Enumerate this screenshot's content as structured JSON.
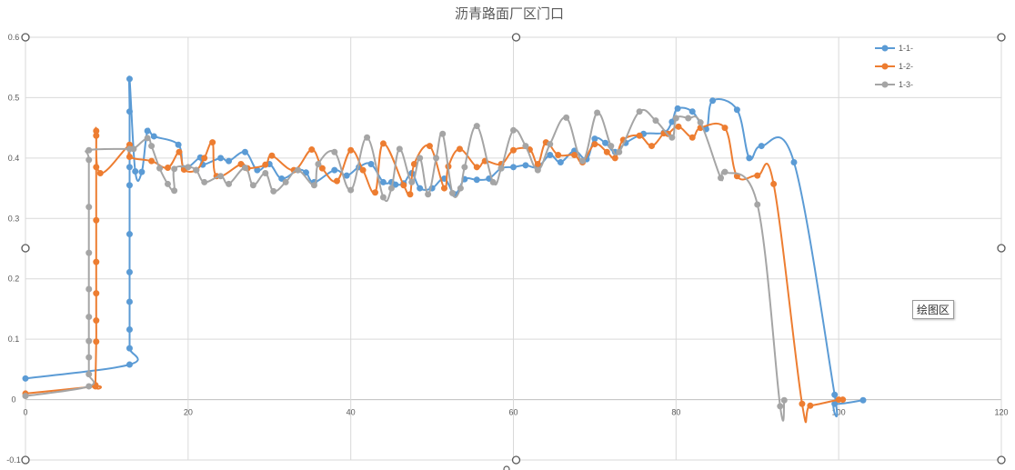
{
  "chart_data": {
    "type": "line",
    "title": "沥青路面厂区门口",
    "xlabel": "",
    "ylabel": "",
    "xlim": [
      0,
      120
    ],
    "ylim": [
      -0.1,
      0.6
    ],
    "x_ticks": [
      0,
      20,
      40,
      60,
      80,
      100,
      120
    ],
    "y_ticks": [
      -0.1,
      0,
      0.1,
      0.2,
      0.3,
      0.4,
      0.5,
      0.6
    ],
    "y_tick_labels": [
      "-0.1",
      "0",
      "0.1",
      "0.2",
      "0.3",
      "0.4",
      "0.5",
      "0.6"
    ],
    "grid": true,
    "legend_position": "top-right",
    "series": [
      {
        "name": "1-1-",
        "color": "#5b9bd5",
        "points": [
          [
            0,
            0.035
          ],
          [
            12.8,
            0.058
          ],
          [
            12.8,
            0.085
          ],
          [
            12.8,
            0.116
          ],
          [
            12.8,
            0.162
          ],
          [
            12.8,
            0.211
          ],
          [
            12.8,
            0.274
          ],
          [
            12.8,
            0.355
          ],
          [
            12.8,
            0.385
          ],
          [
            12.8,
            0.477
          ],
          [
            12.8,
            0.531
          ],
          [
            13.5,
            0.378
          ],
          [
            14.3,
            0.377
          ],
          [
            15,
            0.445
          ],
          [
            15.8,
            0.436
          ],
          [
            18.8,
            0.422
          ],
          [
            19.5,
            0.383
          ],
          [
            21.5,
            0.401
          ],
          [
            21.8,
            0.389
          ],
          [
            24,
            0.4
          ],
          [
            25,
            0.395
          ],
          [
            27,
            0.41
          ],
          [
            28.5,
            0.38
          ],
          [
            30,
            0.39
          ],
          [
            31.5,
            0.366
          ],
          [
            33.5,
            0.38
          ],
          [
            34.5,
            0.376
          ],
          [
            35.5,
            0.36
          ],
          [
            38,
            0.38
          ],
          [
            39.5,
            0.371
          ],
          [
            41,
            0.385
          ],
          [
            42.5,
            0.39
          ],
          [
            44,
            0.36
          ],
          [
            45,
            0.36
          ],
          [
            45.5,
            0.356
          ],
          [
            46.5,
            0.358
          ],
          [
            47.5,
            0.375
          ],
          [
            48.5,
            0.35
          ],
          [
            50,
            0.35
          ],
          [
            51.5,
            0.366
          ],
          [
            52.8,
            0.34
          ],
          [
            54,
            0.365
          ],
          [
            55.5,
            0.364
          ],
          [
            57,
            0.366
          ],
          [
            58.5,
            0.383
          ],
          [
            60,
            0.385
          ],
          [
            61.5,
            0.388
          ],
          [
            63,
            0.385
          ],
          [
            64.5,
            0.405
          ],
          [
            65.8,
            0.393
          ],
          [
            67.5,
            0.412
          ],
          [
            69,
            0.398
          ],
          [
            70,
            0.432
          ],
          [
            71.3,
            0.425
          ],
          [
            72.5,
            0.41
          ],
          [
            73.8,
            0.425
          ],
          [
            76,
            0.44
          ],
          [
            78.5,
            0.442
          ],
          [
            79.5,
            0.46
          ],
          [
            80.2,
            0.482
          ],
          [
            82,
            0.477
          ],
          [
            83.7,
            0.448
          ],
          [
            84.5,
            0.495
          ],
          [
            87.5,
            0.48
          ],
          [
            89,
            0.4
          ],
          [
            90.5,
            0.42
          ],
          [
            94.5,
            0.393
          ],
          [
            99.5,
            0.008
          ],
          [
            99.5,
            -0.007
          ],
          [
            103,
            -0.001
          ]
        ]
      },
      {
        "name": "1-2-",
        "color": "#ed7d31",
        "points": [
          [
            0,
            0.01
          ],
          [
            8.6,
            0.022
          ],
          [
            8.6,
            0.024
          ],
          [
            8.7,
            0.096
          ],
          [
            8.7,
            0.131
          ],
          [
            8.7,
            0.176
          ],
          [
            8.7,
            0.228
          ],
          [
            8.7,
            0.297
          ],
          [
            8.7,
            0.385
          ],
          [
            8.7,
            0.437
          ],
          [
            8.7,
            0.445
          ],
          [
            9.2,
            0.375
          ],
          [
            12.8,
            0.422
          ],
          [
            12.8,
            0.402
          ],
          [
            15.5,
            0.395
          ],
          [
            17.5,
            0.384
          ],
          [
            18.9,
            0.41
          ],
          [
            19.5,
            0.381
          ],
          [
            21,
            0.38
          ],
          [
            22,
            0.4
          ],
          [
            23,
            0.426
          ],
          [
            23.5,
            0.37
          ],
          [
            26.5,
            0.39
          ],
          [
            27.3,
            0.383
          ],
          [
            29.5,
            0.389
          ],
          [
            30.3,
            0.404
          ],
          [
            33,
            0.38
          ],
          [
            35.2,
            0.414
          ],
          [
            36.5,
            0.383
          ],
          [
            38.3,
            0.362
          ],
          [
            40,
            0.413
          ],
          [
            41.5,
            0.38
          ],
          [
            43,
            0.343
          ],
          [
            44,
            0.424
          ],
          [
            46.5,
            0.355
          ],
          [
            47.3,
            0.34
          ],
          [
            47.8,
            0.39
          ],
          [
            49.7,
            0.42
          ],
          [
            51.5,
            0.35
          ],
          [
            52,
            0.386
          ],
          [
            53.4,
            0.415
          ],
          [
            55.5,
            0.385
          ],
          [
            56.5,
            0.395
          ],
          [
            58.5,
            0.39
          ],
          [
            60,
            0.413
          ],
          [
            62,
            0.414
          ],
          [
            63,
            0.39
          ],
          [
            64,
            0.426
          ],
          [
            65.5,
            0.405
          ],
          [
            67.5,
            0.405
          ],
          [
            68.5,
            0.393
          ],
          [
            70,
            0.423
          ],
          [
            71.5,
            0.41
          ],
          [
            72.5,
            0.4
          ],
          [
            73.5,
            0.43
          ],
          [
            75.5,
            0.437
          ],
          [
            77,
            0.42
          ],
          [
            78.5,
            0.441
          ],
          [
            79,
            0.44
          ],
          [
            80.3,
            0.452
          ],
          [
            82,
            0.434
          ],
          [
            83,
            0.45
          ],
          [
            86,
            0.45
          ],
          [
            87.5,
            0.37
          ],
          [
            90,
            0.371
          ],
          [
            92,
            0.357
          ],
          [
            95.5,
            -0.007
          ],
          [
            96.5,
            -0.01
          ],
          [
            100,
            0.0
          ],
          [
            100.5,
            0.0
          ]
        ]
      },
      {
        "name": "1-3-",
        "color": "#a5a5a5",
        "points": [
          [
            0,
            0.006
          ],
          [
            7.8,
            0.022
          ],
          [
            7.8,
            0.042
          ],
          [
            7.8,
            0.07
          ],
          [
            7.8,
            0.097
          ],
          [
            7.8,
            0.137
          ],
          [
            7.8,
            0.183
          ],
          [
            7.8,
            0.243
          ],
          [
            7.8,
            0.319
          ],
          [
            7.8,
            0.397
          ],
          [
            7.8,
            0.413
          ],
          [
            12.8,
            0.415
          ],
          [
            13.3,
            0.415
          ],
          [
            15,
            0.433
          ],
          [
            15.5,
            0.42
          ],
          [
            16.5,
            0.383
          ],
          [
            17.5,
            0.357
          ],
          [
            18.3,
            0.346
          ],
          [
            18.3,
            0.382
          ],
          [
            20,
            0.385
          ],
          [
            21,
            0.38
          ],
          [
            22,
            0.36
          ],
          [
            24,
            0.37
          ],
          [
            25,
            0.357
          ],
          [
            27,
            0.384
          ],
          [
            28,
            0.355
          ],
          [
            29.5,
            0.375
          ],
          [
            30.5,
            0.345
          ],
          [
            32,
            0.36
          ],
          [
            33.5,
            0.38
          ],
          [
            35.5,
            0.355
          ],
          [
            36,
            0.39
          ],
          [
            38,
            0.41
          ],
          [
            40,
            0.347
          ],
          [
            42,
            0.434
          ],
          [
            44,
            0.335
          ],
          [
            45,
            0.35
          ],
          [
            46,
            0.415
          ],
          [
            47.5,
            0.36
          ],
          [
            48.5,
            0.4
          ],
          [
            49.5,
            0.34
          ],
          [
            50.5,
            0.4
          ],
          [
            51.3,
            0.44
          ],
          [
            52.5,
            0.342
          ],
          [
            53.5,
            0.35
          ],
          [
            54,
            0.385
          ],
          [
            55.5,
            0.453
          ],
          [
            57.5,
            0.36
          ],
          [
            58.5,
            0.383
          ],
          [
            60,
            0.446
          ],
          [
            61.5,
            0.42
          ],
          [
            63,
            0.38
          ],
          [
            64.5,
            0.423
          ],
          [
            66.5,
            0.467
          ],
          [
            68.5,
            0.395
          ],
          [
            70.3,
            0.475
          ],
          [
            72,
            0.42
          ],
          [
            73,
            0.41
          ],
          [
            75.5,
            0.477
          ],
          [
            77.5,
            0.462
          ],
          [
            79.5,
            0.434
          ],
          [
            80,
            0.466
          ],
          [
            81.5,
            0.466
          ],
          [
            83,
            0.459
          ],
          [
            85.5,
            0.367
          ],
          [
            86,
            0.377
          ],
          [
            90,
            0.323
          ],
          [
            92.8,
            -0.011
          ],
          [
            93.3,
            -0.001
          ]
        ]
      }
    ]
  },
  "tooltip_label": "绘图区"
}
